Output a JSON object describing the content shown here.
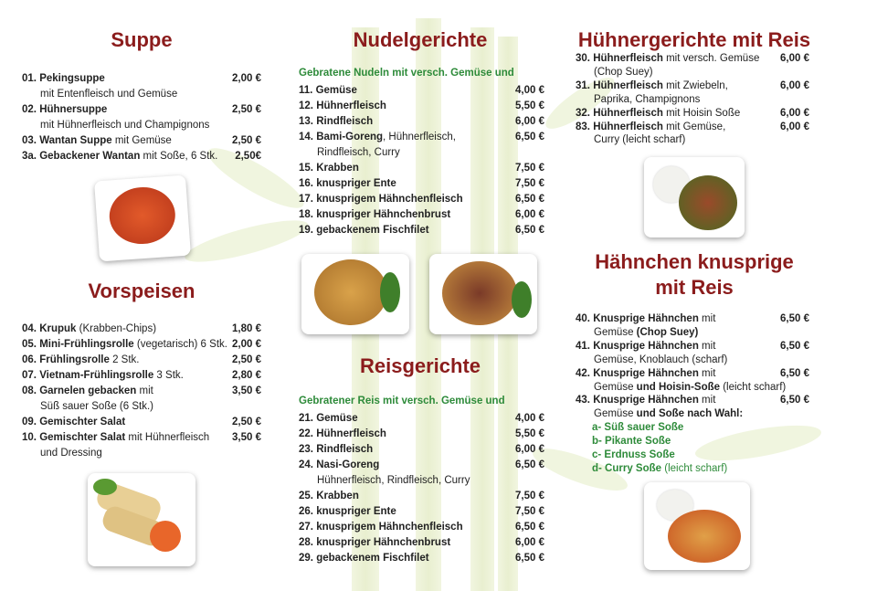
{
  "colors": {
    "title": "#8b1c1c",
    "subtitle": "#2e8b3a",
    "background": "#ffffff"
  },
  "sections": [
    {
      "id": "suppe",
      "title": "Suppe",
      "items": [
        {
          "num": "01.",
          "name": "Pekingsuppe",
          "desc": "",
          "price": "2,00 €",
          "cont": [
            {
              "t": "mit Entenfleisch und Gemüse"
            }
          ]
        },
        {
          "num": "02.",
          "name": "Hühnersuppe",
          "desc": "",
          "price": "2,50 €",
          "cont": [
            {
              "t": "mit Hühnerfleisch und Champignons"
            }
          ]
        },
        {
          "num": "03.",
          "name": "Wantan Suppe",
          "desc": " mit Gemüse",
          "price": "2,50 €"
        },
        {
          "num": "3a.",
          "name": "Gebackener Wantan",
          "desc": " mit Soße, 6 Stk.",
          "price": "2,50€"
        }
      ]
    },
    {
      "id": "vorspeisen",
      "title": "Vorspeisen",
      "items": [
        {
          "num": "04.",
          "name": "Krupuk",
          "desc": " (Krabben-Chips)",
          "price": "1,80 €"
        },
        {
          "num": "05.",
          "name": "Mini-Frühlingsrolle",
          "desc": " (vegetarisch) 6 Stk.",
          "price": "2,00 €"
        },
        {
          "num": "06.",
          "name": "Frühlingsrolle",
          "desc": " 2 Stk.",
          "price": "2,50 €"
        },
        {
          "num": "07.",
          "name": "Vietnam-Frühlingsrolle",
          "desc": " 3 Stk.",
          "price": "2,80 €"
        },
        {
          "num": "08.",
          "name": "Garnelen gebacken",
          "desc": " mit",
          "price": "3,50 €",
          "cont": [
            {
              "t": "Süß sauer Soße (6 Stk.)"
            }
          ]
        },
        {
          "num": "09.",
          "name": "Gemischter Salat",
          "desc": "",
          "price": "2,50 €"
        },
        {
          "num": "10.",
          "name": "Gemischter Salat",
          "desc": " mit Hühnerfleisch",
          "price": "3,50 €",
          "cont": [
            {
              "t": "und Dressing"
            }
          ]
        }
      ]
    },
    {
      "id": "nudel",
      "title": "Nudelgerichte",
      "subtitle": "Gebratene Nudeln mit versch. Gemüse und",
      "items": [
        {
          "num": "11.",
          "name": "Gemüse",
          "desc": "",
          "price": "4,00 €"
        },
        {
          "num": "12.",
          "name": "Hühnerfleisch",
          "desc": "",
          "price": "5,50 €"
        },
        {
          "num": "13.",
          "name": "Rindfleisch",
          "desc": "",
          "price": "6,00 €"
        },
        {
          "num": "14.",
          "name": "Bami-Goreng",
          "desc": ", Hühnerfleisch,",
          "price": "6,50 €",
          "cont": [
            {
              "t": "Rindfleisch, Curry"
            }
          ]
        },
        {
          "num": "15.",
          "name": "Krabben",
          "desc": "",
          "price": "7,50 €"
        },
        {
          "num": "16.",
          "name": "knuspriger Ente",
          "desc": "",
          "price": "7,50 €"
        },
        {
          "num": "17.",
          "name": "knusprigem Hähnchenfleisch",
          "desc": "",
          "price": "6,50 €"
        },
        {
          "num": "18.",
          "name": "knuspriger Hähnchenbrust",
          "desc": "",
          "price": "6,00 €"
        },
        {
          "num": "19.",
          "name": "gebackenem Fischfilet",
          "desc": "",
          "price": "6,50 €"
        }
      ]
    },
    {
      "id": "reis",
      "title": "Reisgerichte",
      "subtitle": "Gebratener Reis mit versch. Gemüse und",
      "items": [
        {
          "num": "21.",
          "name": "Gemüse",
          "desc": "",
          "price": "4,00 €"
        },
        {
          "num": "22.",
          "name": "Hühnerfleisch",
          "desc": "",
          "price": "5,50 €"
        },
        {
          "num": "23.",
          "name": "Rindfleisch",
          "desc": "",
          "price": "6,00 €"
        },
        {
          "num": "24.",
          "name": "Nasi-Goreng",
          "desc": "",
          "price": "6,50 €",
          "cont": [
            {
              "t": "Hühnerfleisch, Rindfleisch, Curry"
            }
          ]
        },
        {
          "num": "25.",
          "name": "Krabben",
          "desc": "",
          "price": "7,50 €"
        },
        {
          "num": "26.",
          "name": "knuspriger Ente",
          "desc": "",
          "price": "7,50 €"
        },
        {
          "num": "27.",
          "name": "knusprigem Hähnchenfleisch",
          "desc": "",
          "price": "6,50 €"
        },
        {
          "num": "28.",
          "name": "knuspriger Hähnchenbrust",
          "desc": "",
          "price": "6,00 €"
        },
        {
          "num": "29.",
          "name": "gebackenem Fischfilet",
          "desc": "",
          "price": "6,50 €"
        }
      ]
    },
    {
      "id": "huhn",
      "title": "Hühnergerichte mit Reis",
      "items": [
        {
          "num": "30.",
          "name": "Hühnerfleisch",
          "desc": " mit versch. Gemüse",
          "price": "6,00 €",
          "cont": [
            {
              "t": "(Chop Suey)"
            }
          ]
        },
        {
          "num": "31.",
          "name": "Hühnerfleisch",
          "desc": " mit Zwiebeln,",
          "price": "6,00 €",
          "cont": [
            {
              "t": "Paprika, Champignons"
            }
          ]
        },
        {
          "num": "32.",
          "name": "Hühnerfleisch",
          "desc": " mit Hoisin Soße",
          "price": "6,00 €"
        },
        {
          "num": "83.",
          "name": "Hühnerfleisch",
          "desc": " mit Gemüse,",
          "price": "6,00 €",
          "cont": [
            {
              "t": "Curry (leicht scharf)"
            }
          ]
        }
      ]
    },
    {
      "id": "knusprig",
      "title": "Hähnchen knusprige",
      "title2": "mit Reis",
      "items": [
        {
          "num": "40.",
          "name": "Knusprige Hähnchen",
          "desc": " mit",
          "price": "6,50 €",
          "cont": [
            {
              "t": "Gemüse  "
            },
            {
              "t": "(Chop Suey)",
              "b": true
            }
          ]
        },
        {
          "num": "41.",
          "name": "Knusprige Hähnchen",
          "desc": " mit",
          "price": "6,50 €",
          "cont": [
            {
              "t": "Gemüse, Knoblauch (scharf)"
            }
          ]
        },
        {
          "num": "42.",
          "name": "Knusprige Hähnchen",
          "desc": " mit",
          "price": "6,50 €",
          "cont": [
            {
              "t": "Gemüse "
            },
            {
              "t": "und Hoisin-Soße",
              "b": true
            },
            {
              "t": " (leicht scharf)"
            }
          ]
        },
        {
          "num": "43.",
          "name": "Knusprige Hähnchen",
          "desc": " mit",
          "price": "6,50 €",
          "cont": [
            {
              "t": "Gemüse "
            },
            {
              "t": "und Soße nach Wahl:",
              "b": true
            }
          ]
        }
      ],
      "sauces": [
        {
          "b": "a- Süß sauer Soße",
          "t": ""
        },
        {
          "b": "b- Pikante Soße",
          "t": ""
        },
        {
          "b": "c- Erdnuss Soße",
          "t": ""
        },
        {
          "b": "d- Curry Soße",
          "t": "  (leicht scharf)"
        }
      ]
    }
  ]
}
